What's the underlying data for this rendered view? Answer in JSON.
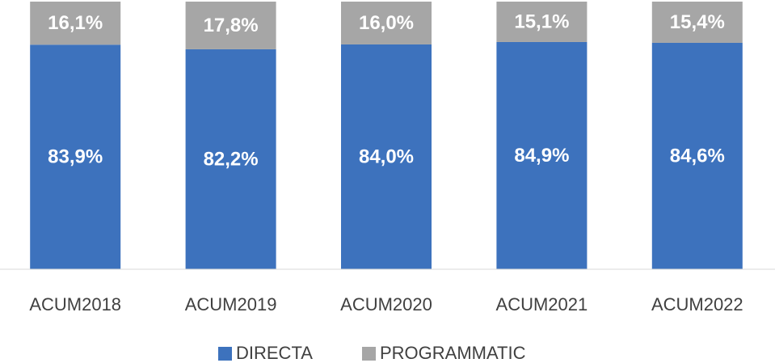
{
  "chart_data": {
    "type": "stacked_bar",
    "categories": [
      "ACUM2018",
      "ACUM2019",
      "ACUM2020",
      "ACUM2021",
      "ACUM2022"
    ],
    "series": [
      {
        "name": "DIRECTA",
        "color": "#3d72bd",
        "values": [
          83.9,
          82.2,
          84.0,
          84.9,
          84.6
        ],
        "value_labels": [
          "83,9%",
          "82,2%",
          "84,0%",
          "84,9%",
          "84,6%"
        ]
      },
      {
        "name": "PROGRAMMATIC",
        "color": "#a6a6a6",
        "values": [
          16.1,
          17.8,
          16.0,
          15.1,
          15.4
        ],
        "value_labels": [
          "16,1%",
          "17,8%",
          "16,0%",
          "15,1%",
          "15,4%"
        ]
      }
    ],
    "ylim": [
      0,
      100
    ],
    "legend": "bottom"
  }
}
